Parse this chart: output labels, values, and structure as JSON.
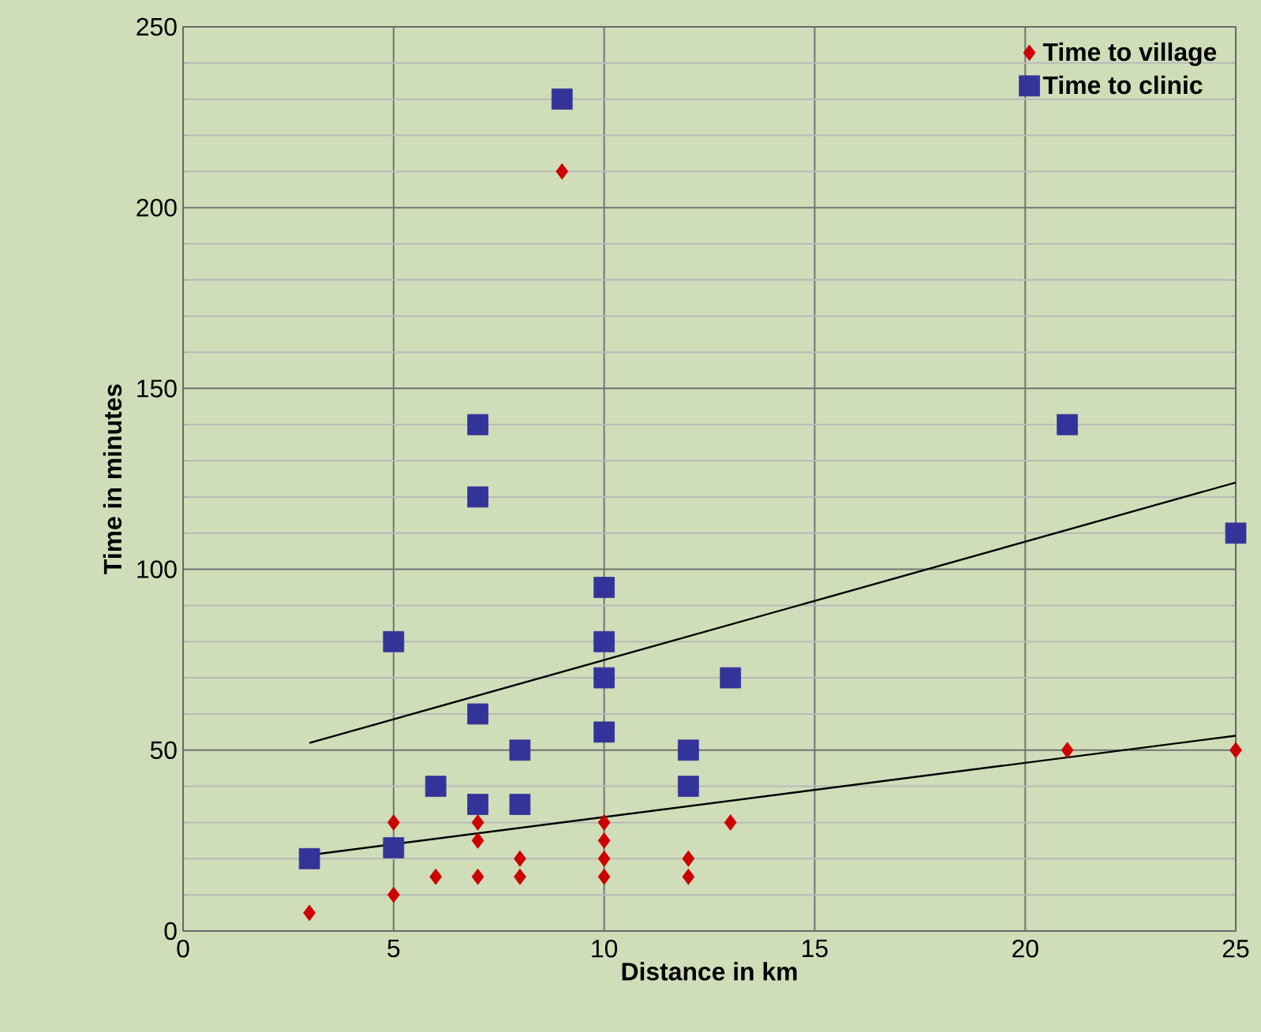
{
  "chart_data": {
    "type": "scatter",
    "xlabel": "Distance in km",
    "ylabel": "Time in minutes",
    "xlim": [
      0,
      25
    ],
    "xticks": [
      0,
      5,
      10,
      15,
      20,
      25
    ],
    "ylim": [
      0,
      250
    ],
    "yticks": [
      0,
      50,
      100,
      150,
      200,
      250
    ],
    "grid": true,
    "legend": "top right",
    "series": [
      {
        "name": "Time to village",
        "color": "#cc0000",
        "marker": "diamond",
        "x": [
          3,
          5,
          5,
          6,
          7,
          7,
          7,
          8,
          8,
          9,
          10,
          10,
          10,
          10,
          12,
          12,
          13,
          21,
          25
        ],
        "values": [
          5,
          30,
          10,
          15,
          30,
          25,
          15,
          20,
          15,
          210,
          30,
          25,
          20,
          15,
          20,
          15,
          30,
          50,
          50
        ]
      },
      {
        "name": "Time to clinic",
        "color": "#333399",
        "marker": "square",
        "x": [
          3,
          5,
          5,
          6,
          7,
          7,
          7,
          7,
          8,
          8,
          9,
          10,
          10,
          10,
          10,
          12,
          12,
          13,
          21,
          25
        ],
        "values": [
          20,
          80,
          23,
          40,
          140,
          120,
          60,
          35,
          50,
          35,
          230,
          95,
          80,
          70,
          55,
          50,
          40,
          70,
          140,
          110
        ]
      },
      {
        "type": "line",
        "color": "#000000",
        "marker": "none",
        "x": [
          3,
          25
        ],
        "values": [
          52,
          124
        ]
      },
      {
        "type": "line",
        "color": "#000000",
        "marker": "none",
        "x": [
          3,
          25
        ],
        "values": [
          21,
          54
        ]
      }
    ]
  }
}
